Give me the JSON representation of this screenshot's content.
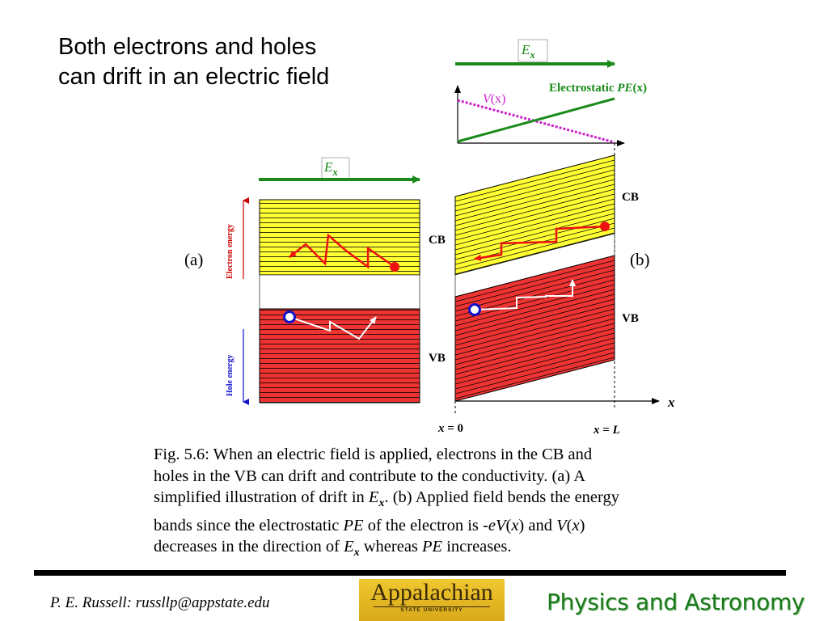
{
  "slide": {
    "title_lines": [
      "Both electrons and holes",
      "can drift in an electric field"
    ]
  },
  "figure": {
    "field_symbol": "E",
    "field_subscript": "x",
    "panel_a_label": "(a)",
    "panel_b_label": "(b)",
    "cb_label": "CB",
    "vb_label": "VB",
    "pe_label": {
      "prefix": "Electrostatic ",
      "pe": "PE",
      "arg": "(x)"
    },
    "v_label": {
      "v": "V",
      "arg": "(x)"
    },
    "x_axis_label": "x",
    "x0_label": {
      "x": "x",
      "rest": " = 0"
    },
    "xL_label": {
      "x": "x",
      "rest": " = ",
      "L": "L"
    },
    "side_electron_label": "Electron energy",
    "side_hole_label": "Hole energy",
    "colors": {
      "field_arrow": "#1a8a1a",
      "conduction_band": "#ffff33",
      "valence_band": "#ee3333",
      "potential_curve": "#cc22cc",
      "electron": "#ee1111",
      "hole": "#1111cc"
    }
  },
  "caption": {
    "line1": "Fig. 5.6: When an electric field is applied, electrons in the CB and",
    "line2": "holes in the VB can drift and contribute to the conductivity. (a) A",
    "line3_a": "simplified illustration of drift in ",
    "field_symbol": "E",
    "field_subscript": "x",
    "line3_b": ". (b) Applied field bends the energy",
    "line4_a": "bands since the electrostatic ",
    "pe": "PE",
    "line4_b": " of the electron is -",
    "e": "e",
    "V": "V",
    "x": "x",
    "line4_c": " and ",
    "line5_a": "decreases in the direction of ",
    "line5_b": " whereas ",
    "line5_c": " increases."
  },
  "footer": {
    "author": "P. E. Russell: russllp@appstate.edu",
    "logo_main": "Appalachian",
    "logo_sub": "STATE UNIVERSITY",
    "dept": "Physics and Astronomy"
  }
}
